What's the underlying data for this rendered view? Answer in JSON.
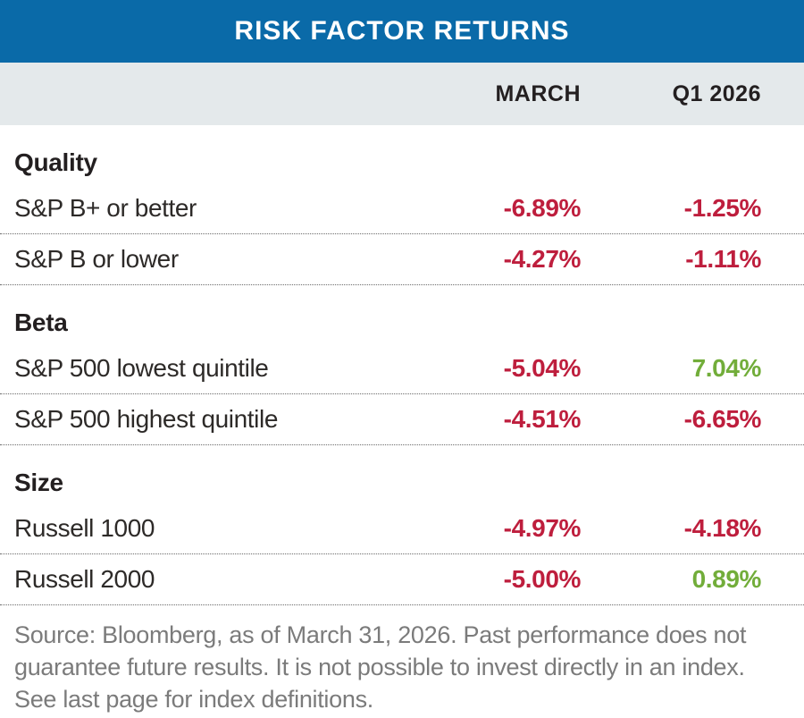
{
  "header": {
    "title": "RISK FACTOR RETURNS"
  },
  "columns": {
    "march": "MARCH",
    "q1": "Q1 2026"
  },
  "colors": {
    "blue": "#0a6aa8",
    "band": "#e4e9eb",
    "negative": "#be1e3d",
    "positive": "#72ad3a",
    "label": "#2d2a28",
    "heading": "#231f20",
    "footer": "#7b7b7b",
    "divider": "#6b6b6b"
  },
  "sections": [
    {
      "title": "Quality",
      "rows": [
        {
          "label": "S&P B+ or better",
          "march": "-6.89%",
          "march_tone": "negative",
          "q1": "-1.25%",
          "q1_tone": "negative"
        },
        {
          "label": "S&P B or lower",
          "march": "-4.27%",
          "march_tone": "negative",
          "q1": "-1.11%",
          "q1_tone": "negative"
        }
      ]
    },
    {
      "title": "Beta",
      "rows": [
        {
          "label": "S&P 500 lowest quintile",
          "march": "-5.04%",
          "march_tone": "negative",
          "q1": "7.04%",
          "q1_tone": "positive"
        },
        {
          "label": "S&P 500 highest quintile",
          "march": "-4.51%",
          "march_tone": "negative",
          "q1": "-6.65%",
          "q1_tone": "negative"
        }
      ]
    },
    {
      "title": "Size",
      "rows": [
        {
          "label": "Russell 1000",
          "march": "-4.97%",
          "march_tone": "negative",
          "q1": "-4.18%",
          "q1_tone": "negative"
        },
        {
          "label": "Russell 2000",
          "march": "-5.00%",
          "march_tone": "negative",
          "q1": "0.89%",
          "q1_tone": "positive"
        }
      ]
    }
  ],
  "footer": {
    "text": "Source: Bloomberg, as of March 31, 2026. Past performance does not guarantee future results. It is not possible to invest directly in an index. See last page for index definitions."
  },
  "chart_data": {
    "type": "table",
    "title": "RISK FACTOR RETURNS",
    "columns": [
      "",
      "MARCH",
      "Q1 2026"
    ],
    "groups": [
      {
        "group": "Quality",
        "rows": [
          [
            "S&P B+ or better",
            -6.89,
            -1.25
          ],
          [
            "S&P B or lower",
            -4.27,
            -1.11
          ]
        ]
      },
      {
        "group": "Beta",
        "rows": [
          [
            "S&P 500 lowest quintile",
            -5.04,
            7.04
          ],
          [
            "S&P 500 highest quintile",
            -4.51,
            -6.65
          ]
        ]
      },
      {
        "group": "Size",
        "rows": [
          [
            "Russell 1000",
            -4.97,
            -4.18
          ],
          [
            "Russell 2000",
            -5.0,
            0.89
          ]
        ]
      }
    ],
    "units": "percent",
    "value_color_rule": "negative values red (#be1e3d), positive values green (#72ad3a)",
    "note": "Source: Bloomberg, as of March 31, 2026. Past performance does not guarantee future results. It is not possible to invest directly in an index. See last page for index definitions."
  }
}
